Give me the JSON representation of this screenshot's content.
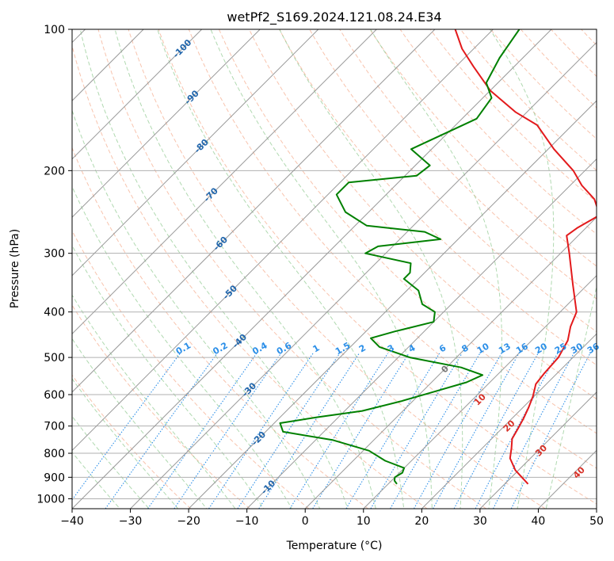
{
  "chart_data": {
    "type": "skew-t",
    "title": "wetPf2_S169.2024.121.08.24.E34",
    "xlabel": "Temperature (°C)",
    "ylabel": "Pressure (hPa)",
    "xlim": [
      -40,
      50
    ],
    "ylim": [
      1050,
      100
    ],
    "y_scale": "log",
    "grid": true,
    "x_ticks": [
      "−40",
      "−30",
      "−20",
      "−10",
      "0",
      "10",
      "20",
      "30",
      "40",
      "50"
    ],
    "x_tick_values": [
      -40,
      -30,
      -20,
      -10,
      0,
      10,
      20,
      30,
      40,
      50
    ],
    "y_ticks": [
      "100",
      "200",
      "300",
      "400",
      "500",
      "600",
      "700",
      "800",
      "900",
      "1000"
    ],
    "y_tick_values": [
      100,
      200,
      300,
      400,
      500,
      600,
      700,
      800,
      900,
      1000
    ],
    "colors": {
      "temperature": "#e31a1c",
      "dewpoint": "#008000",
      "isotherm": "#999999",
      "dry_adiabat": "#f4a582",
      "moist_adiabat": "#8fc98f",
      "mixing_ratio": "#2c8fe8",
      "isotherm_label": "#2166ac",
      "adiabat_label": "#d73027",
      "lcl_label": "#777777"
    },
    "series": [
      {
        "key": "temperature",
        "points": [
          {
            "p": 930,
            "t": 34.0
          },
          {
            "p": 870,
            "t": 29.5
          },
          {
            "p": 820,
            "t": 26.5
          },
          {
            "p": 780,
            "t": 25.0
          },
          {
            "p": 745,
            "t": 23.5
          },
          {
            "p": 710,
            "t": 22.8
          },
          {
            "p": 675,
            "t": 22.0
          },
          {
            "p": 640,
            "t": 21.0
          },
          {
            "p": 605,
            "t": 19.8
          },
          {
            "p": 570,
            "t": 18.2
          },
          {
            "p": 540,
            "t": 17.8
          },
          {
            "p": 500,
            "t": 17.5
          },
          {
            "p": 460,
            "t": 16.2
          },
          {
            "p": 430,
            "t": 14.3
          },
          {
            "p": 400,
            "t": 12.8
          },
          {
            "p": 350,
            "t": 7.5
          },
          {
            "p": 300,
            "t": 1.5
          },
          {
            "p": 275,
            "t": -2.0
          },
          {
            "p": 265,
            "t": -1.5
          },
          {
            "p": 250,
            "t": 0.0
          },
          {
            "p": 240,
            "t": -1.5
          },
          {
            "p": 230,
            "t": -3.5
          },
          {
            "p": 215,
            "t": -8.0
          },
          {
            "p": 200,
            "t": -12.0
          },
          {
            "p": 180,
            "t": -19.0
          },
          {
            "p": 160,
            "t": -26.0
          },
          {
            "p": 150,
            "t": -32.0
          },
          {
            "p": 135,
            "t": -40.0
          },
          {
            "p": 120,
            "t": -47.0
          },
          {
            "p": 110,
            "t": -52.0
          },
          {
            "p": 100,
            "t": -56.5
          }
        ]
      },
      {
        "key": "dewpoint",
        "points": [
          {
            "p": 930,
            "t": 11.5
          },
          {
            "p": 915,
            "t": 10.5
          },
          {
            "p": 900,
            "t": 10.0
          },
          {
            "p": 880,
            "t": 10.5
          },
          {
            "p": 860,
            "t": 10.0
          },
          {
            "p": 830,
            "t": 5.5
          },
          {
            "p": 790,
            "t": 1.0
          },
          {
            "p": 750,
            "t": -7.0
          },
          {
            "p": 720,
            "t": -17.0
          },
          {
            "p": 690,
            "t": -19.0
          },
          {
            "p": 670,
            "t": -13.5
          },
          {
            "p": 650,
            "t": -7.0
          },
          {
            "p": 620,
            "t": -2.0
          },
          {
            "p": 595,
            "t": 1.5
          },
          {
            "p": 565,
            "t": 6.0
          },
          {
            "p": 545,
            "t": 7.5
          },
          {
            "p": 525,
            "t": 2.5
          },
          {
            "p": 500,
            "t": -8.0
          },
          {
            "p": 475,
            "t": -15.0
          },
          {
            "p": 455,
            "t": -18.0
          },
          {
            "p": 440,
            "t": -15.0
          },
          {
            "p": 420,
            "t": -10.0
          },
          {
            "p": 400,
            "t": -11.5
          },
          {
            "p": 385,
            "t": -15.0
          },
          {
            "p": 360,
            "t": -18.0
          },
          {
            "p": 340,
            "t": -22.5
          },
          {
            "p": 330,
            "t": -22.5
          },
          {
            "p": 315,
            "t": -24.0
          },
          {
            "p": 300,
            "t": -33.5
          },
          {
            "p": 290,
            "t": -32.5
          },
          {
            "p": 280,
            "t": -23.0
          },
          {
            "p": 270,
            "t": -27.0
          },
          {
            "p": 262,
            "t": -38.0
          },
          {
            "p": 245,
            "t": -44.0
          },
          {
            "p": 225,
            "t": -48.5
          },
          {
            "p": 212,
            "t": -48.5
          },
          {
            "p": 205,
            "t": -38.0
          },
          {
            "p": 195,
            "t": -37.5
          },
          {
            "p": 180,
            "t": -43.5
          },
          {
            "p": 165,
            "t": -40.0
          },
          {
            "p": 155,
            "t": -37.5
          },
          {
            "p": 140,
            "t": -38.5
          },
          {
            "p": 130,
            "t": -42.0
          },
          {
            "p": 115,
            "t": -44.0
          },
          {
            "p": 100,
            "t": -45.5
          }
        ]
      }
    ],
    "isotherm_labels": [
      {
        "text": "-100",
        "t": -100
      },
      {
        "text": "-90",
        "t": -90
      },
      {
        "text": "-80",
        "t": -80
      },
      {
        "text": "-70",
        "t": -70
      },
      {
        "text": "-60",
        "t": -60
      },
      {
        "text": "-50",
        "t": -50
      },
      {
        "text": "-40",
        "t": -40
      },
      {
        "text": "-30",
        "t": -30
      },
      {
        "text": "-20",
        "t": -20
      },
      {
        "text": "-10",
        "t": -10
      }
    ],
    "mixing_ratio_labels": [
      "0.1",
      "0.2",
      "0.4",
      "0.6",
      "1",
      "1.5",
      "2",
      "3",
      "4",
      "6",
      "8",
      "10",
      "13",
      "16",
      "20",
      "25",
      "30",
      "36"
    ],
    "mixing_ratio_values": [
      0.1,
      0.2,
      0.4,
      0.6,
      1,
      1.5,
      2,
      3,
      4,
      6,
      8,
      10,
      13,
      16,
      20,
      25,
      30,
      36
    ],
    "adiabat_labels": [
      {
        "text": "0",
        "p": 530,
        "t": 24
      },
      {
        "text": "10",
        "p": 615,
        "t": 30
      },
      {
        "text": "20",
        "p": 700,
        "t": 35
      },
      {
        "text": "30",
        "p": 790,
        "t": 40.5
      },
      {
        "text": "40",
        "p": 880,
        "t": 47
      }
    ]
  }
}
